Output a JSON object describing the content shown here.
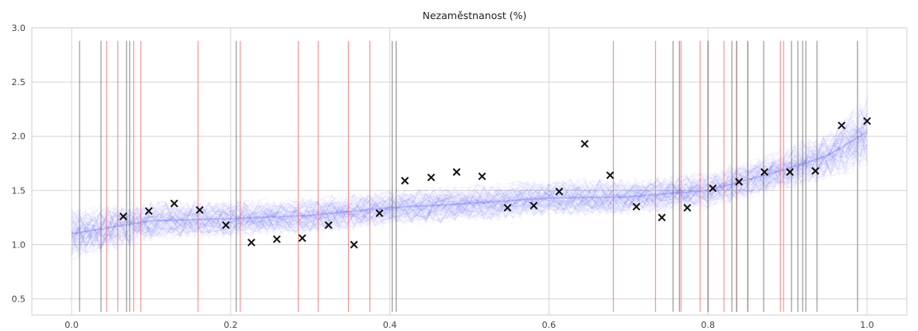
{
  "chart_data": {
    "type": "scatter",
    "title": "Nezaměstnanost (%)",
    "xlim": [
      -0.05,
      1.05
    ],
    "ylim": [
      0.35,
      3.0
    ],
    "xticks": [
      0.0,
      0.2,
      0.4,
      0.6,
      0.8,
      1.0
    ],
    "xtick_labels": [
      "0.0",
      "0.2",
      "0.4",
      "0.6",
      "0.8",
      "1.0"
    ],
    "yticks": [
      0.5,
      1.0,
      1.5,
      2.0,
      2.5,
      3.0
    ],
    "ytick_labels": [
      "0.5",
      "1.0",
      "1.5",
      "2.0",
      "2.5",
      "3.0"
    ],
    "grid": true,
    "series": [
      {
        "marker": "x",
        "color": "#111111",
        "x": [
          0.065,
          0.097,
          0.129,
          0.161,
          0.194,
          0.226,
          0.258,
          0.29,
          0.323,
          0.355,
          0.387,
          0.419,
          0.452,
          0.484,
          0.516,
          0.548,
          0.581,
          0.613,
          0.645,
          0.677,
          0.71,
          0.742,
          0.774,
          0.806,
          0.839,
          0.871,
          0.903,
          0.935,
          0.968,
          1.0
        ],
        "y": [
          1.26,
          1.31,
          1.38,
          1.32,
          1.18,
          1.02,
          1.05,
          1.06,
          1.18,
          1.0,
          1.29,
          1.59,
          1.62,
          1.67,
          1.63,
          1.34,
          1.36,
          1.49,
          1.93,
          1.64,
          1.35,
          1.25,
          1.34,
          1.52,
          1.58,
          1.67,
          1.67,
          1.68,
          2.1,
          2.14
        ]
      }
    ],
    "band": {
      "color": "#4a4af0",
      "x": [
        0.0,
        0.1,
        0.2,
        0.3,
        0.4,
        0.5,
        0.6,
        0.7,
        0.8,
        0.85,
        0.9,
        0.95,
        1.0
      ],
      "mean": [
        1.1,
        1.22,
        1.24,
        1.27,
        1.34,
        1.38,
        1.43,
        1.44,
        1.5,
        1.6,
        1.7,
        1.82,
        2.04
      ],
      "spread": [
        0.22,
        0.16,
        0.15,
        0.15,
        0.15,
        0.15,
        0.15,
        0.15,
        0.15,
        0.16,
        0.18,
        0.2,
        0.28
      ]
    },
    "vlines_gray": {
      "color": "#6e6e6e",
      "x": [
        0.01,
        0.037,
        0.069,
        0.073,
        0.207,
        0.403,
        0.408,
        0.756,
        0.764,
        0.8,
        0.83,
        0.836,
        0.85,
        0.87,
        0.905,
        0.913,
        0.919,
        0.923,
        0.937,
        0.988
      ],
      "y_range": [
        0.38,
        2.88
      ]
    },
    "vlines_red": {
      "color": "#f06a6a",
      "x": [
        0.044,
        0.058,
        0.078,
        0.087,
        0.159,
        0.212,
        0.285,
        0.31,
        0.348,
        0.375,
        0.681,
        0.734,
        0.766,
        0.79,
        0.8,
        0.82,
        0.836,
        0.85,
        0.891,
        0.895
      ],
      "y_range": [
        0.38,
        2.88
      ]
    }
  }
}
